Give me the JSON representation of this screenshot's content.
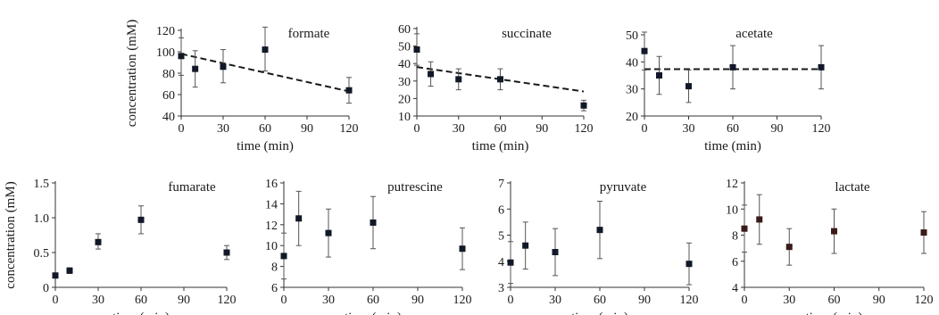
{
  "chart_data": [
    {
      "type": "scatter",
      "title": "formate",
      "xlabel": "time (min)",
      "ylabel": "concentration (mM)",
      "xlim": [
        0,
        120
      ],
      "ylim": [
        40,
        120
      ],
      "xticks": [
        0,
        30,
        60,
        90,
        120
      ],
      "yticks": [
        40,
        60,
        80,
        100,
        120
      ],
      "grid": false,
      "marker_color": "#111827",
      "series": [
        {
          "x": [
            0,
            10,
            30,
            60,
            120
          ],
          "y": [
            96,
            84,
            86,
            102,
            64
          ],
          "err_low": [
            18,
            17,
            15,
            20,
            12
          ],
          "err_high": [
            17,
            17,
            16,
            21,
            12
          ]
        }
      ],
      "trendline": {
        "style": "dashed",
        "x": [
          0,
          120
        ],
        "y": [
          98,
          63
        ]
      }
    },
    {
      "type": "scatter",
      "title": "succinate",
      "xlabel": "time (min)",
      "ylabel": "",
      "xlim": [
        0,
        120
      ],
      "ylim": [
        10,
        60
      ],
      "xticks": [
        0,
        30,
        60,
        90,
        120
      ],
      "yticks": [
        10,
        20,
        30,
        40,
        50,
        60
      ],
      "grid": false,
      "marker_color": "#111827",
      "series": [
        {
          "x": [
            0,
            10,
            30,
            60,
            120
          ],
          "y": [
            48,
            34,
            31,
            31,
            16
          ],
          "err_low": [
            9,
            7,
            6,
            6,
            3
          ],
          "err_high": [
            9,
            7,
            6,
            6,
            3
          ]
        }
      ],
      "trendline": {
        "style": "dashed",
        "x": [
          0,
          120
        ],
        "y": [
          38,
          24
        ]
      }
    },
    {
      "type": "scatter",
      "title": "acetate",
      "xlabel": "time (min)",
      "ylabel": "",
      "xlim": [
        0,
        120
      ],
      "ylim": [
        20,
        50
      ],
      "xticks": [
        0,
        30,
        60,
        90,
        120
      ],
      "yticks": [
        20,
        30,
        40,
        50
      ],
      "grid": false,
      "marker_color": "#111827",
      "series": [
        {
          "x": [
            0,
            10,
            30,
            60,
            120
          ],
          "y": [
            44,
            35,
            31,
            38,
            38
          ],
          "err_low": [
            7,
            7,
            6,
            8,
            8
          ],
          "err_high": [
            7,
            7,
            6,
            8,
            8
          ]
        }
      ],
      "trendline": {
        "style": "dashed",
        "x": [
          0,
          120
        ],
        "y": [
          37.3,
          37.3
        ]
      }
    },
    {
      "type": "scatter",
      "title": "fumarate",
      "xlabel": "time (min)",
      "ylabel": "concentration (mM)",
      "xlim": [
        0,
        120
      ],
      "ylim": [
        0,
        1.5
      ],
      "xticks": [
        0,
        30,
        60,
        90,
        120
      ],
      "yticks": [
        0,
        0.5,
        1.0,
        1.5
      ],
      "ytick_labels": [
        "0",
        "0.5",
        "1.0",
        "1.5"
      ],
      "grid": false,
      "marker_color": "#111827",
      "series": [
        {
          "x": [
            0,
            10,
            30,
            60,
            120
          ],
          "y": [
            0.17,
            0.24,
            0.65,
            0.97,
            0.5
          ],
          "err_low": [
            0.03,
            0.04,
            0.1,
            0.2,
            0.1
          ],
          "err_high": [
            0.03,
            0.04,
            0.12,
            0.2,
            0.1
          ]
        }
      ]
    },
    {
      "type": "scatter",
      "title": "putrescine",
      "xlabel": "time (min)",
      "ylabel": "",
      "xlim": [
        0,
        120
      ],
      "ylim": [
        6,
        16
      ],
      "xticks": [
        0,
        30,
        60,
        90,
        120
      ],
      "yticks": [
        6,
        8,
        10,
        12,
        14,
        16
      ],
      "grid": false,
      "marker_color": "#111827",
      "series": [
        {
          "x": [
            0,
            10,
            30,
            60,
            120
          ],
          "y": [
            9.0,
            12.6,
            11.2,
            12.2,
            9.7
          ],
          "err_low": [
            2.2,
            2.6,
            2.3,
            2.5,
            2.0
          ],
          "err_high": [
            2.2,
            2.6,
            2.3,
            2.5,
            2.0
          ]
        }
      ]
    },
    {
      "type": "scatter",
      "title": "pyruvate",
      "xlabel": "time (min)",
      "ylabel": "",
      "xlim": [
        0,
        120
      ],
      "ylim": [
        3,
        7
      ],
      "xticks": [
        0,
        30,
        60,
        90,
        120
      ],
      "yticks": [
        3,
        4,
        5,
        6,
        7
      ],
      "grid": false,
      "marker_color": "#111827",
      "series": [
        {
          "x": [
            0,
            10,
            30,
            60,
            120
          ],
          "y": [
            3.95,
            4.6,
            4.35,
            5.2,
            3.9
          ],
          "err_low": [
            0.8,
            0.9,
            0.9,
            1.1,
            0.8
          ],
          "err_high": [
            0.8,
            0.9,
            0.9,
            1.1,
            0.8
          ]
        }
      ]
    },
    {
      "type": "scatter",
      "title": "lactate",
      "xlabel": "time (min)",
      "ylabel": "",
      "xlim": [
        0,
        120
      ],
      "ylim": [
        4,
        12
      ],
      "xticks": [
        0,
        30,
        60,
        90,
        120
      ],
      "yticks": [
        4,
        6,
        8,
        10,
        12
      ],
      "grid": false,
      "marker_color": "#3a1a1a",
      "series": [
        {
          "x": [
            0,
            10,
            30,
            60,
            120
          ],
          "y": [
            8.5,
            9.2,
            7.1,
            8.3,
            8.2
          ],
          "err_low": [
            1.8,
            1.9,
            1.4,
            1.7,
            1.6
          ],
          "err_high": [
            1.8,
            1.9,
            1.4,
            1.7,
            1.6
          ]
        }
      ]
    }
  ]
}
